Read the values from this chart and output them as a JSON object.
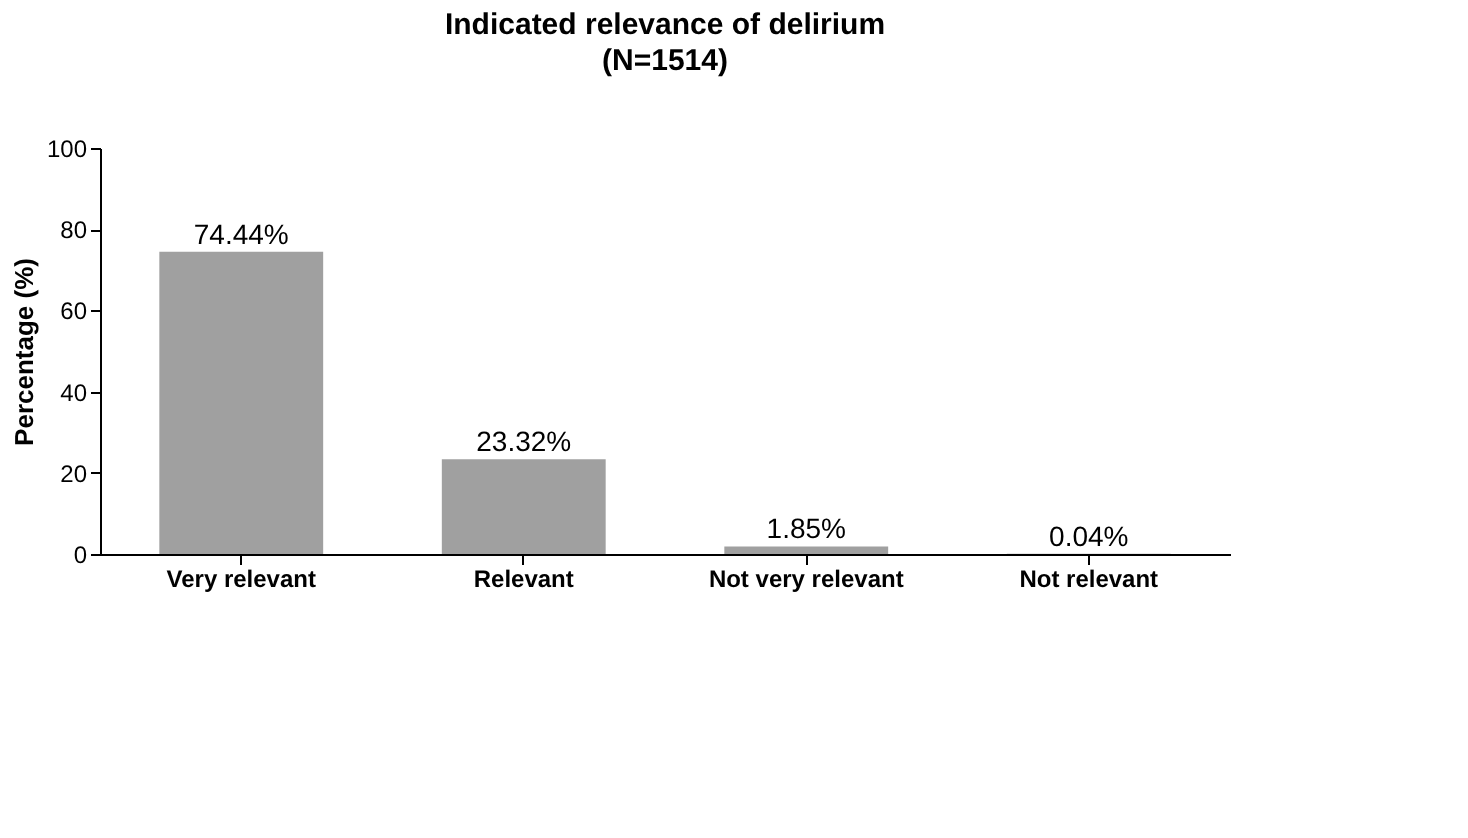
{
  "chart_data": {
    "type": "bar",
    "title": "Indicated relevance of delirium",
    "subtitle": "(N=1514)",
    "ylabel": "Percentage (%)",
    "categories": [
      "Very relevant",
      "Relevant",
      "Not very relevant",
      "Not relevant"
    ],
    "values": [
      74.44,
      23.32,
      1.85,
      0.04
    ],
    "value_labels": [
      "74.44%",
      "23.32%",
      "1.85%",
      "0.04%"
    ],
    "color": "#a0a0a0",
    "ylim": [
      0,
      100
    ],
    "yticks": [
      0,
      20,
      40,
      60,
      80,
      100
    ],
    "grid": false
  }
}
